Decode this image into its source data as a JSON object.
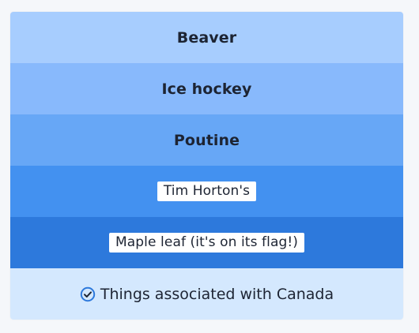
{
  "items": [
    {
      "label": "Beaver"
    },
    {
      "label": "Ice hockey"
    },
    {
      "label": "Poutine"
    },
    {
      "label": "Tim Horton's"
    },
    {
      "label": "Maple leaf (it's on its flag!)"
    }
  ],
  "footer": {
    "icon": "check-circle-icon",
    "text": "Things associated with Canada"
  },
  "colors": {
    "row_1": "#a7cdfe",
    "row_2": "#88b9fc",
    "row_3": "#67a7f6",
    "row_4": "#4391f0",
    "row_5": "#2d79dc",
    "footer_bg": "#d4e8fe",
    "accent": "#2d79dc"
  }
}
